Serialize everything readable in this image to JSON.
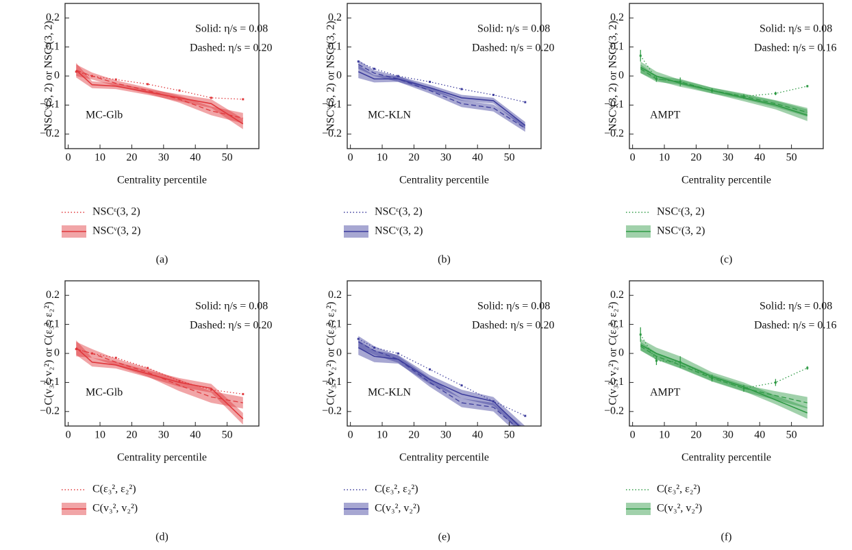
{
  "chart_data": [
    {
      "type": "line",
      "ylabel": "NSCᵛ(3, 2) or NSCᵋ(3, 2)",
      "xlabel": "Centrality percentile",
      "panel_label": "(a)",
      "annotations": [
        "Solid: η/s = 0.08",
        "Dashed: η/s = 0.20",
        "MC-Glb"
      ],
      "xlim": [
        -1,
        60
      ],
      "xticks": [
        0,
        10,
        20,
        30,
        40,
        50
      ],
      "ylim": [
        -0.25,
        0.25
      ],
      "yticks": [
        {
          "value": -0.2,
          "label": "−0.2"
        },
        {
          "value": -0.1,
          "label": "−0.1"
        },
        0,
        0.1,
        0.2
      ],
      "x": [
        2.5,
        7.5,
        15,
        25,
        35,
        45,
        55
      ],
      "series": [
        {
          "name": "NSCᵋ(3, 2)",
          "style": "dotted",
          "color": "#e0383c",
          "values": [
            0.015,
            0.0,
            -0.012,
            -0.028,
            -0.05,
            -0.075,
            -0.08
          ]
        },
        {
          "name": "NSCᵛ(3, 2)",
          "style": "solid",
          "color": "#e0383c",
          "values": [
            0.02,
            -0.03,
            -0.035,
            -0.055,
            -0.075,
            -0.095,
            -0.165
          ],
          "errors": [
            0.025,
            0.012,
            0.01,
            0.01,
            0.012,
            0.015,
            0.018
          ]
        },
        {
          "style": "dashed",
          "color": "#e0383c",
          "values": [
            0.02,
            0.0,
            -0.025,
            -0.05,
            -0.08,
            -0.12,
            -0.145
          ],
          "errors": [
            0.02,
            0.012,
            0.01,
            0.01,
            0.012,
            0.015,
            0.018
          ]
        }
      ]
    },
    {
      "type": "line",
      "ylabel": "NSCᵛ(3, 2) or NSCᵋ(3, 2)",
      "xlabel": "Centrality percentile",
      "panel_label": "(b)",
      "annotations": [
        "Solid: η/s = 0.08",
        "Dashed: η/s = 0.20",
        "MC-KLN"
      ],
      "xlim": [
        -1,
        60
      ],
      "xticks": [
        0,
        10,
        20,
        30,
        40,
        50
      ],
      "ylim": [
        -0.25,
        0.25
      ],
      "yticks": [
        {
          "value": -0.2,
          "label": "−0.2"
        },
        {
          "value": -0.1,
          "label": "−0.1"
        },
        0,
        0.1,
        0.2
      ],
      "x": [
        2.5,
        7.5,
        15,
        25,
        35,
        45,
        55
      ],
      "series": [
        {
          "name": "NSCᵋ(3, 2)",
          "style": "dotted",
          "color": "#3c3c9c",
          "values": [
            0.05,
            0.025,
            0.0,
            -0.02,
            -0.045,
            -0.065,
            -0.09
          ]
        },
        {
          "name": "NSCᵛ(3, 2)",
          "style": "solid",
          "color": "#3c3c9c",
          "values": [
            0.015,
            -0.01,
            -0.01,
            -0.04,
            -0.075,
            -0.085,
            -0.17
          ],
          "errors": [
            0.022,
            0.012,
            0.01,
            0.01,
            0.01,
            0.01,
            0.012
          ]
        },
        {
          "style": "dashed",
          "color": "#3c3c9c",
          "values": [
            0.04,
            0.01,
            -0.01,
            -0.05,
            -0.095,
            -0.11,
            -0.18
          ],
          "errors": [
            0.015,
            0.01,
            0.01,
            0.01,
            0.012,
            0.012,
            0.012
          ]
        }
      ]
    },
    {
      "type": "line",
      "ylabel": "NSCᵛ(3, 2) or NSCᵋ(3, 2)",
      "xlabel": "Centrality percentile",
      "panel_label": "(c)",
      "annotations": [
        "Solid: η/s = 0.08",
        "Dashed: η/s = 0.16",
        "AMPT"
      ],
      "xlim": [
        -1,
        60
      ],
      "xticks": [
        0,
        10,
        20,
        30,
        40,
        50
      ],
      "ylim": [
        -0.25,
        0.25
      ],
      "yticks": [
        {
          "value": -0.2,
          "label": "−0.2"
        },
        {
          "value": -0.1,
          "label": "−0.1"
        },
        0,
        0.1,
        0.2
      ],
      "x": [
        2.5,
        7.5,
        15,
        25,
        35,
        45,
        55
      ],
      "series": [
        {
          "name": "NSCᵋ(3, 2)",
          "style": "dotted",
          "color": "#2e9a44",
          "values": [
            0.07,
            -0.01,
            -0.02,
            -0.05,
            -0.07,
            -0.06,
            -0.035
          ],
          "errors": [
            0.02,
            0.01,
            0.015,
            0.008,
            0.008,
            0.006,
            0.004
          ]
        },
        {
          "name": "NSCᵛ(3, 2)",
          "style": "solid",
          "color": "#2e9a44",
          "values": [
            0.03,
            0.0,
            -0.025,
            -0.05,
            -0.075,
            -0.1,
            -0.135
          ],
          "errors": [
            0.02,
            0.015,
            0.012,
            0.01,
            0.012,
            0.015,
            0.02
          ]
        },
        {
          "style": "dashed",
          "color": "#2e9a44",
          "values": [
            0.025,
            -0.01,
            -0.02,
            -0.05,
            -0.07,
            -0.095,
            -0.125
          ],
          "errors": [
            0.015,
            0.01,
            0.01,
            0.01,
            0.01,
            0.012,
            0.015
          ]
        }
      ]
    },
    {
      "type": "line",
      "ylabel": "C(v₃², v₂²) or C(ε₃², ε₂²)",
      "xlabel": "Centrality percentile",
      "panel_label": "(d)",
      "annotations": [
        "Solid: η/s = 0.08",
        "Dashed: η/s = 0.20",
        "MC-Glb"
      ],
      "xlim": [
        -1,
        60
      ],
      "xticks": [
        0,
        10,
        20,
        30,
        40,
        50
      ],
      "ylim": [
        -0.25,
        0.25
      ],
      "yticks": [
        {
          "value": -0.2,
          "label": "−0.2"
        },
        {
          "value": -0.1,
          "label": "−0.1"
        },
        0,
        0.1,
        0.2
      ],
      "x": [
        2.5,
        7.5,
        15,
        25,
        35,
        45,
        55
      ],
      "series": [
        {
          "name": "C(ε₃², ε₂²)",
          "style": "dotted",
          "color": "#e0383c",
          "values": [
            0.015,
            0.0,
            -0.015,
            -0.05,
            -0.095,
            -0.125,
            -0.14
          ]
        },
        {
          "name": "C(v₃², v₂²)",
          "style": "solid",
          "color": "#e0383c",
          "values": [
            0.02,
            -0.03,
            -0.04,
            -0.07,
            -0.1,
            -0.12,
            -0.225
          ],
          "errors": [
            0.025,
            0.015,
            0.012,
            0.012,
            0.015,
            0.015,
            0.02
          ]
        },
        {
          "style": "dashed",
          "color": "#e0383c",
          "values": [
            0.015,
            0.0,
            -0.03,
            -0.065,
            -0.11,
            -0.15,
            -0.17
          ],
          "errors": [
            0.025,
            0.015,
            0.012,
            0.015,
            0.02,
            0.02,
            0.02
          ]
        }
      ]
    },
    {
      "type": "line",
      "ylabel": "C(v₃², v₂²) or C(ε₃², ε₂²)",
      "xlabel": "Centrality percentile",
      "panel_label": "(e)",
      "annotations": [
        "Solid: η/s = 0.08",
        "Dashed: η/s = 0.20",
        "MC-KLN"
      ],
      "xlim": [
        -1,
        60
      ],
      "xticks": [
        0,
        10,
        20,
        30,
        40,
        50
      ],
      "ylim": [
        -0.25,
        0.25
      ],
      "yticks": [
        {
          "value": -0.2,
          "label": "−0.2"
        },
        {
          "value": -0.1,
          "label": "−0.1"
        },
        0,
        0.1,
        0.2
      ],
      "x": [
        2.5,
        7.5,
        15,
        25,
        35,
        45,
        55
      ],
      "series": [
        {
          "name": "C(ε₃², ε₂²)",
          "style": "dotted",
          "color": "#3c3c9c",
          "values": [
            0.05,
            0.02,
            0.0,
            -0.055,
            -0.11,
            -0.165,
            -0.215
          ]
        },
        {
          "name": "C(v₃², v₂²)",
          "style": "solid",
          "color": "#3c3c9c",
          "values": [
            0.02,
            -0.01,
            -0.02,
            -0.09,
            -0.14,
            -0.165,
            -0.27
          ],
          "errors": [
            0.025,
            0.02,
            0.015,
            0.015,
            0.015,
            0.015,
            0.02
          ]
        },
        {
          "style": "dashed",
          "color": "#3c3c9c",
          "values": [
            0.04,
            0.01,
            -0.02,
            -0.1,
            -0.17,
            -0.185,
            -0.28
          ],
          "errors": [
            0.02,
            0.015,
            0.012,
            0.015,
            0.015,
            0.015,
            0.02
          ]
        }
      ]
    },
    {
      "type": "line",
      "ylabel": "C(v₃², v₂²) or C(ε₃², ε₂²)",
      "xlabel": "Centrality percentile",
      "panel_label": "(f)",
      "annotations": [
        "Solid: η/s = 0.08",
        "Dashed: η/s = 0.16",
        "AMPT"
      ],
      "xlim": [
        -1,
        60
      ],
      "xticks": [
        0,
        10,
        20,
        30,
        40,
        50
      ],
      "ylim": [
        -0.25,
        0.25
      ],
      "yticks": [
        {
          "value": -0.2,
          "label": "−0.2"
        },
        {
          "value": -0.1,
          "label": "−0.1"
        },
        0,
        0.1,
        0.2
      ],
      "x": [
        2.5,
        7.5,
        15,
        25,
        35,
        45,
        55
      ],
      "series": [
        {
          "name": "C(ε₃², ε₂²)",
          "style": "dotted",
          "color": "#2e9a44",
          "values": [
            0.065,
            -0.025,
            -0.03,
            -0.085,
            -0.12,
            -0.1,
            -0.05
          ],
          "errors": [
            0.025,
            0.015,
            0.02,
            0.012,
            0.012,
            0.012,
            0.006
          ]
        },
        {
          "name": "C(v₃², v₂²)",
          "style": "solid",
          "color": "#2e9a44",
          "values": [
            0.03,
            0.0,
            -0.03,
            -0.08,
            -0.115,
            -0.16,
            -0.205
          ],
          "errors": [
            0.02,
            0.02,
            0.02,
            0.015,
            0.015,
            0.015,
            0.02
          ]
        },
        {
          "style": "dashed",
          "color": "#2e9a44",
          "values": [
            0.025,
            -0.01,
            -0.04,
            -0.085,
            -0.12,
            -0.145,
            -0.17
          ],
          "errors": [
            0.015,
            0.012,
            0.012,
            0.012,
            0.012,
            0.015,
            0.02
          ]
        }
      ]
    }
  ]
}
